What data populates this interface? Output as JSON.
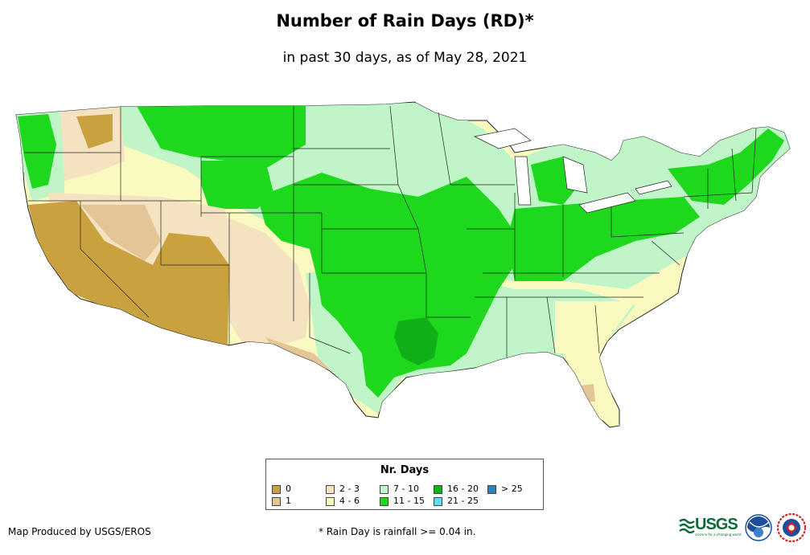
{
  "header": {
    "title": "Number of Rain Days (RD)*",
    "subtitle": "in past 30 days, as of May 28, 2021"
  },
  "legend": {
    "title": "Nr. Days",
    "items": [
      {
        "label": "0",
        "color": "#c9a13f"
      },
      {
        "label": "1",
        "color": "#e3c597"
      },
      {
        "label": "2 - 3",
        "color": "#f5e2c1"
      },
      {
        "label": "4 - 6",
        "color": "#fafac0"
      },
      {
        "label": "7 - 10",
        "color": "#c0f5c8"
      },
      {
        "label": "11 - 15",
        "color": "#1ed81e"
      },
      {
        "label": "16 - 20",
        "color": "#12b018"
      },
      {
        "label": "21 - 25",
        "color": "#66d9f2"
      },
      {
        "label": "> 25",
        "color": "#1a8ac2"
      }
    ]
  },
  "footer": {
    "credit": "Map Produced by USGS/EROS",
    "note": "* Rain Day is rainfall >= 0.04 in."
  },
  "logos": {
    "usgs": "USGS",
    "usgs_tagline": "science for a changing world",
    "noaa": "noaa",
    "nws": "NWS"
  }
}
